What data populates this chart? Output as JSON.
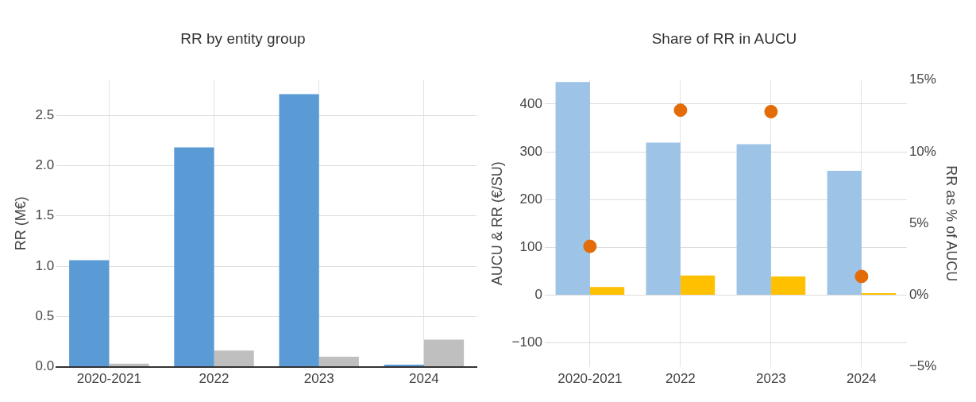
{
  "chart_data": [
    {
      "type": "bar",
      "title": "RR by entity group",
      "ylabel": "RR (M€)",
      "categories": [
        "2020-2021",
        "2022",
        "2023",
        "2024"
      ],
      "series": [
        {
          "color": "#5b9bd5",
          "values": [
            1.06,
            2.18,
            2.71,
            0.02
          ]
        },
        {
          "color": "#bfbfbf",
          "values": [
            0.03,
            0.16,
            0.1,
            0.27
          ]
        }
      ],
      "ylim": [
        0,
        2.85
      ],
      "yticks": [
        {
          "value": 0,
          "label": "0.0"
        },
        {
          "value": 0.5,
          "label": "0.5"
        },
        {
          "value": 1,
          "label": "1.0"
        },
        {
          "value": 1.5,
          "label": "1.5"
        },
        {
          "value": 2,
          "label": "2.0"
        },
        {
          "value": 2.5,
          "label": "2.5"
        }
      ],
      "grid": true
    },
    {
      "type": "bar",
      "title": "Share of RR in AUCU",
      "ylabel": "AUCU & RR (€/SU)",
      "y2label": "RR as % of AUCU",
      "categories": [
        "2020-2021",
        "2022",
        "2023",
        "2024"
      ],
      "series": [
        {
          "color": "#9dc3e6",
          "values": [
            446,
            319,
            316,
            260
          ]
        },
        {
          "color": "#ffc000",
          "values": [
            17,
            41,
            39,
            4
          ]
        },
        {
          "type": "scatter",
          "axis": "y2",
          "color": "#e36c09",
          "values": [
            3.4,
            12.9,
            12.8,
            1.3
          ]
        }
      ],
      "marker": "circle",
      "ylim": [
        -150,
        450
      ],
      "yticks": [
        {
          "value": -100,
          "label": "−100"
        },
        0,
        100,
        200,
        300,
        400
      ],
      "y2lim": [
        -5,
        15
      ],
      "y2ticks": [
        {
          "value": -5,
          "label": "−5%"
        },
        {
          "value": 0,
          "label": "0%"
        },
        {
          "value": 5,
          "label": "5%"
        },
        {
          "value": 10,
          "label": "10%"
        },
        {
          "value": 15,
          "label": "15%"
        }
      ],
      "grid": true
    }
  ]
}
